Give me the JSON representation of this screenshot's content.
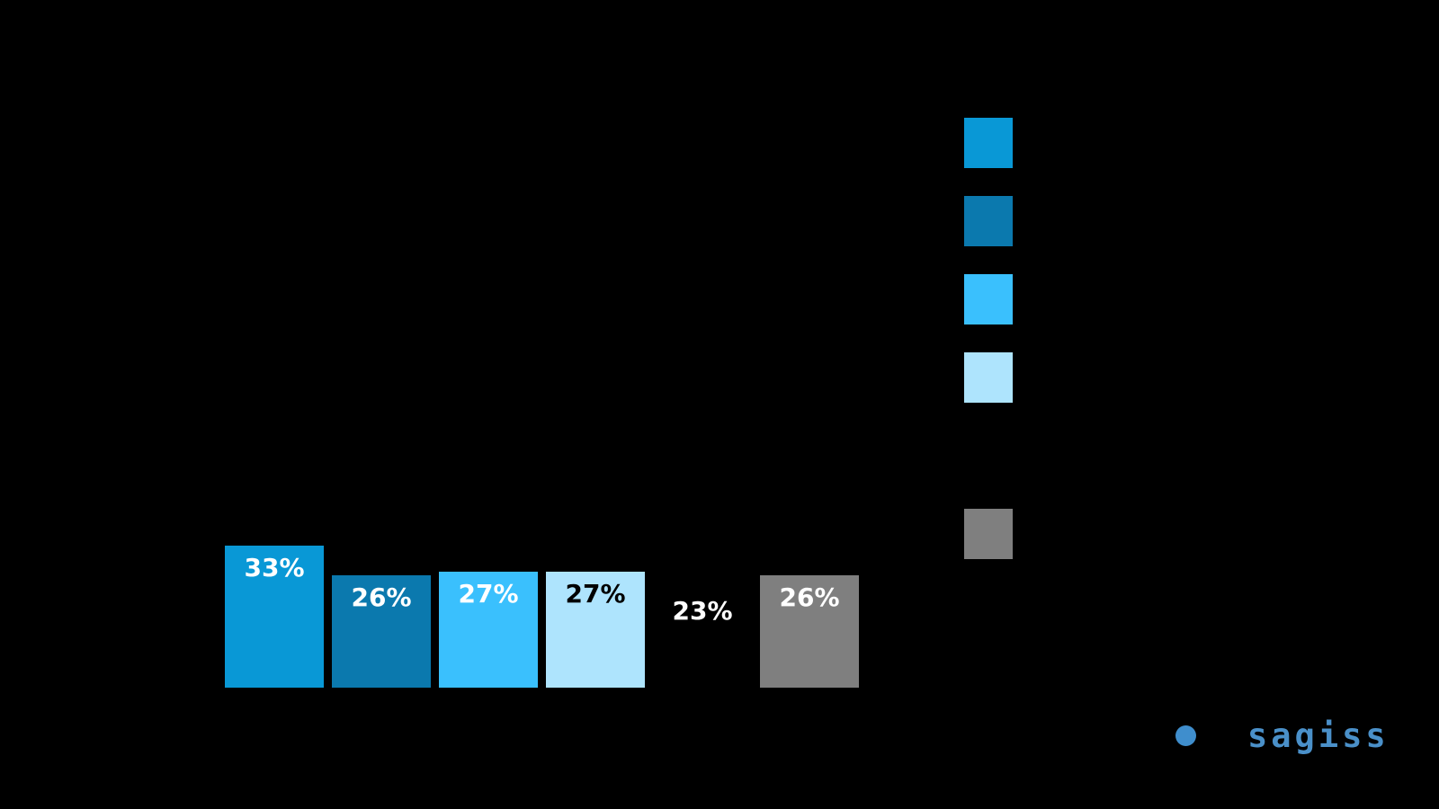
{
  "background_color": "#000000",
  "chart_data": {
    "type": "bar",
    "values": [
      33,
      26,
      27,
      27,
      23,
      26
    ],
    "value_unit": "%",
    "data_labels": [
      "33%",
      "26%",
      "27%",
      "27%",
      "23%",
      "26%"
    ],
    "bar_colors": [
      "#0998d6",
      "#0b79ae",
      "#3ac0fd",
      "#aee4fd",
      "#000000",
      "#7f7f7f"
    ],
    "data_label_colors": [
      "#ffffff",
      "#ffffff",
      "#ffffff",
      "#000000",
      "#ffffff",
      "#ffffff"
    ],
    "legend_position": "right",
    "legend_swatch_colors": [
      "#0998d6",
      "#0b79ae",
      "#3ac0fd",
      "#aee4fd",
      "#000000",
      "#7f7f7f"
    ],
    "grid": "off",
    "axes_visible": false
  },
  "logo": {
    "text": "sagiss",
    "dot_color": "#3f8ecd",
    "text_color": "#4a90c9"
  }
}
